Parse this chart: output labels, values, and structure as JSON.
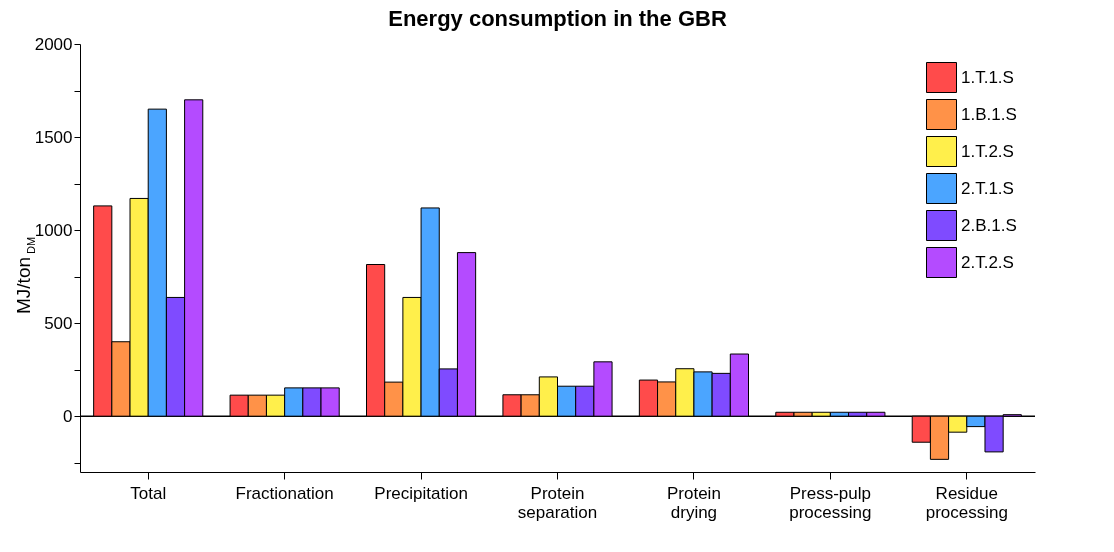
{
  "chart_data": {
    "type": "bar",
    "title": "Energy consumption in the GBR",
    "ylabel": "MJ/ton$_{DM}$",
    "categories": [
      "Total",
      "Fractionation",
      "Precipitation",
      "Protein separation",
      "Protein drying",
      "Press-pulp processing",
      "Residue processing"
    ],
    "series": [
      {
        "name": "1.T.1.S",
        "color": "#ff4b4b",
        "values": [
          1130,
          113,
          815,
          115,
          194,
          21,
          -140
        ]
      },
      {
        "name": "1.B.1.S",
        "color": "#ff9248",
        "values": [
          400,
          113,
          183,
          115,
          184,
          21,
          -232
        ]
      },
      {
        "name": "1.T.2.S",
        "color": "#ffef4b",
        "values": [
          1170,
          113,
          638,
          211,
          255,
          21,
          -86
        ]
      },
      {
        "name": "2.T.1.S",
        "color": "#4ba5ff",
        "values": [
          1650,
          152,
          1119,
          161,
          238,
          21,
          -56
        ]
      },
      {
        "name": "2.B.1.S",
        "color": "#7f4bff",
        "values": [
          638,
          152,
          254,
          161,
          230,
          21,
          -192
        ]
      },
      {
        "name": "2.T.2.S",
        "color": "#b44bff",
        "values": [
          1700,
          152,
          879,
          292,
          334,
          21,
          8
        ]
      }
    ],
    "ylim": [
      -300,
      2000
    ],
    "yticks": [
      {
        "value": -250,
        "label": null
      },
      0,
      {
        "value": 250,
        "label": null
      },
      500,
      {
        "value": 750,
        "label": null
      },
      1000,
      {
        "value": 1250,
        "label": null
      },
      1500,
      {
        "value": 1750,
        "label": null
      },
      2000
    ],
    "ref_lines": [
      {
        "axis": "y",
        "value": 0,
        "color": "#000000"
      }
    ],
    "grid": false,
    "legend": "top right"
  }
}
